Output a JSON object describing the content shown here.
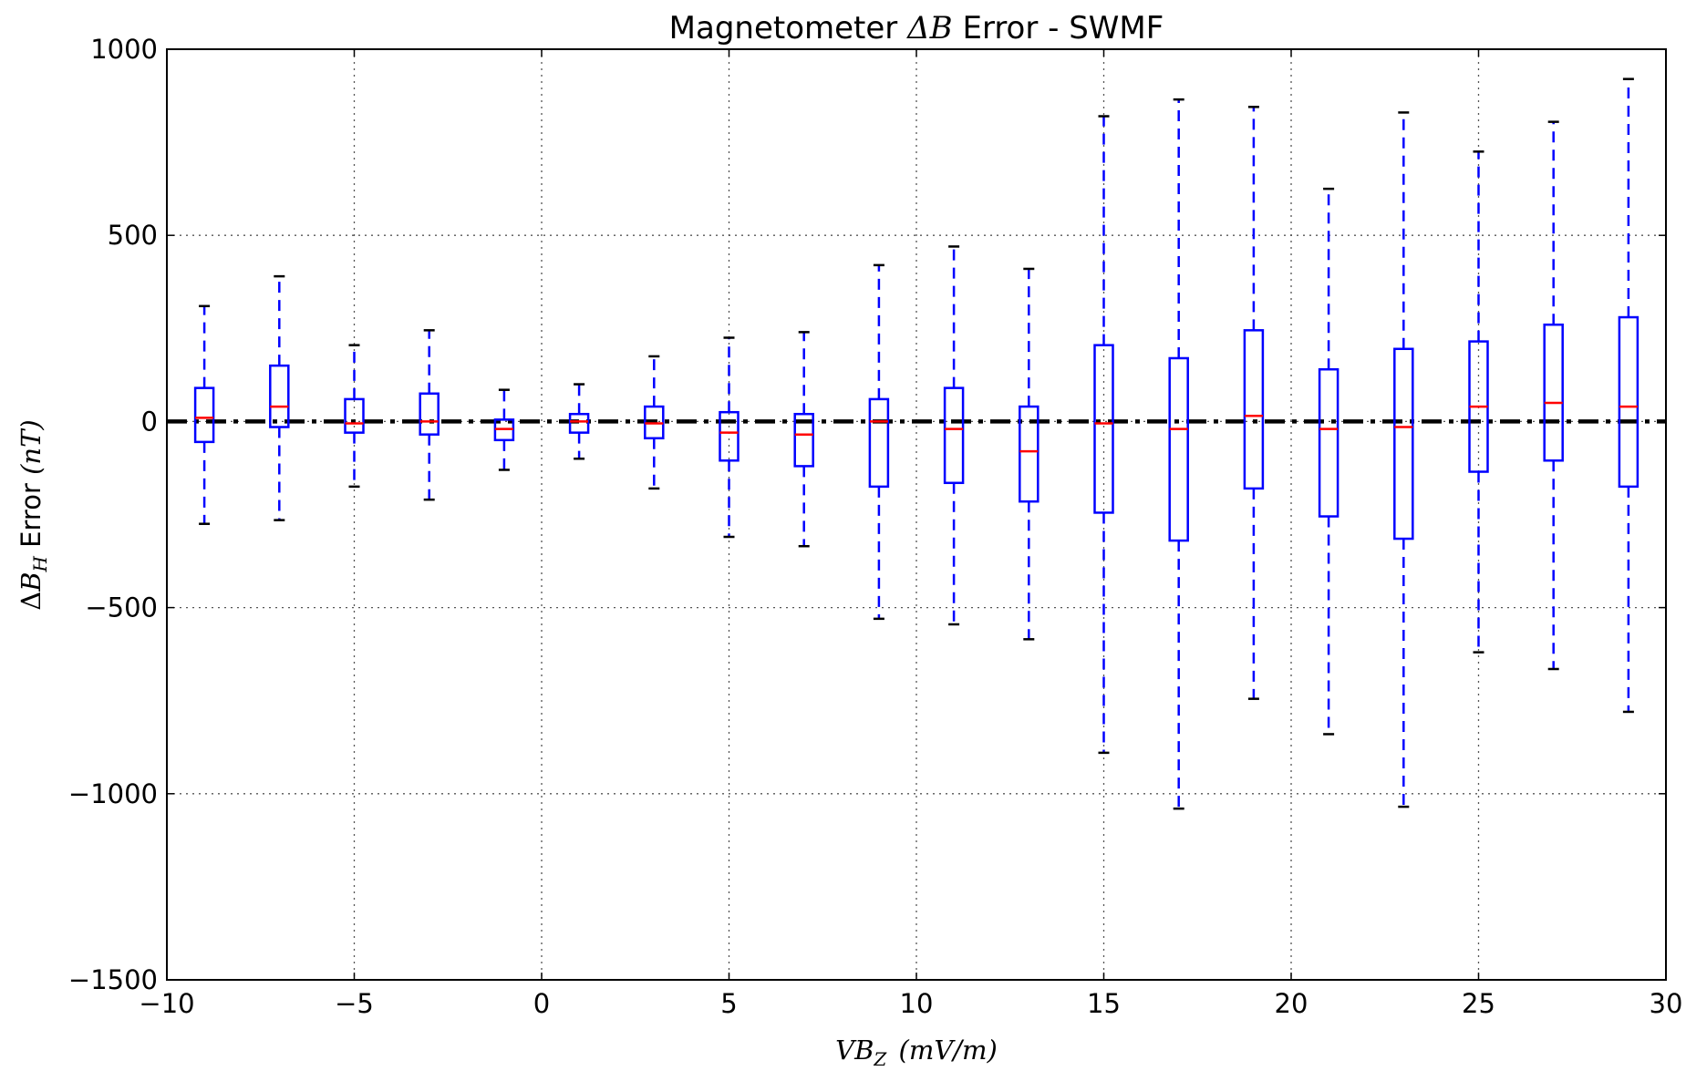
{
  "chart_data": {
    "type": "box",
    "title_prefix": "Magnetometer ",
    "title_math": "ΔB",
    "title_suffix": " Error - SWMF",
    "ylabel_math_delta": "Δ",
    "ylabel_math_var": "B",
    "ylabel_math_sub": "H",
    "ylabel_text": " Error ",
    "ylabel_unit": "(nT)",
    "xlabel_math_var": "VB",
    "xlabel_math_sub": "Z",
    "xlabel_unit": "(mV/m)",
    "xlim": [
      -10,
      30
    ],
    "ylim": [
      -1500,
      1000
    ],
    "xticks": [
      -10,
      -5,
      0,
      5,
      10,
      15,
      20,
      25,
      30
    ],
    "xtick_labels": [
      "−10",
      "−5",
      "0",
      "5",
      "10",
      "15",
      "20",
      "25",
      "30"
    ],
    "yticks": [
      -1500,
      -1000,
      -500,
      0,
      500,
      1000
    ],
    "ytick_labels": [
      "−1500",
      "−1000",
      "−500",
      "0",
      "500",
      "1000"
    ],
    "grid": true,
    "reference_line_y": 0,
    "colors": {
      "box": "#0000ff",
      "median": "#ff0000",
      "cap": "#000000",
      "reference_line": "#000000",
      "grid": "#555555"
    },
    "boxes": [
      {
        "x": -9,
        "whislo": -275,
        "q1": -55,
        "med": 10,
        "q3": 90,
        "whishi": 310
      },
      {
        "x": -7,
        "whislo": -265,
        "q1": -15,
        "med": 40,
        "q3": 150,
        "whishi": 390
      },
      {
        "x": -5,
        "whislo": -175,
        "q1": -30,
        "med": -5,
        "q3": 60,
        "whishi": 205
      },
      {
        "x": -3,
        "whislo": -210,
        "q1": -35,
        "med": 0,
        "q3": 75,
        "whishi": 245
      },
      {
        "x": -1,
        "whislo": -130,
        "q1": -50,
        "med": -20,
        "q3": 5,
        "whishi": 85
      },
      {
        "x": 1,
        "whislo": -100,
        "q1": -30,
        "med": 0,
        "q3": 20,
        "whishi": 100
      },
      {
        "x": 3,
        "whislo": -180,
        "q1": -45,
        "med": -5,
        "q3": 40,
        "whishi": 175
      },
      {
        "x": 5,
        "whislo": -310,
        "q1": -105,
        "med": -30,
        "q3": 25,
        "whishi": 225
      },
      {
        "x": 7,
        "whislo": -335,
        "q1": -120,
        "med": -35,
        "q3": 20,
        "whishi": 240
      },
      {
        "x": 9,
        "whislo": -530,
        "q1": -175,
        "med": 0,
        "q3": 60,
        "whishi": 420
      },
      {
        "x": 11,
        "whislo": -545,
        "q1": -165,
        "med": -20,
        "q3": 90,
        "whishi": 470
      },
      {
        "x": 13,
        "whislo": -585,
        "q1": -215,
        "med": -80,
        "q3": 40,
        "whishi": 410
      },
      {
        "x": 15,
        "whislo": -890,
        "q1": -245,
        "med": -5,
        "q3": 205,
        "whishi": 820
      },
      {
        "x": 17,
        "whislo": -1040,
        "q1": -320,
        "med": -20,
        "q3": 170,
        "whishi": 865
      },
      {
        "x": 19,
        "whislo": -745,
        "q1": -180,
        "med": 15,
        "q3": 245,
        "whishi": 845
      },
      {
        "x": 21,
        "whislo": -840,
        "q1": -255,
        "med": -20,
        "q3": 140,
        "whishi": 625
      },
      {
        "x": 23,
        "whislo": -1035,
        "q1": -315,
        "med": -15,
        "q3": 195,
        "whishi": 830
      },
      {
        "x": 25,
        "whislo": -620,
        "q1": -135,
        "med": 40,
        "q3": 215,
        "whishi": 725
      },
      {
        "x": 27,
        "whislo": -665,
        "q1": -105,
        "med": 50,
        "q3": 260,
        "whishi": 805
      },
      {
        "x": 29,
        "whislo": -780,
        "q1": -175,
        "med": 40,
        "q3": 280,
        "whishi": 920
      }
    ]
  }
}
